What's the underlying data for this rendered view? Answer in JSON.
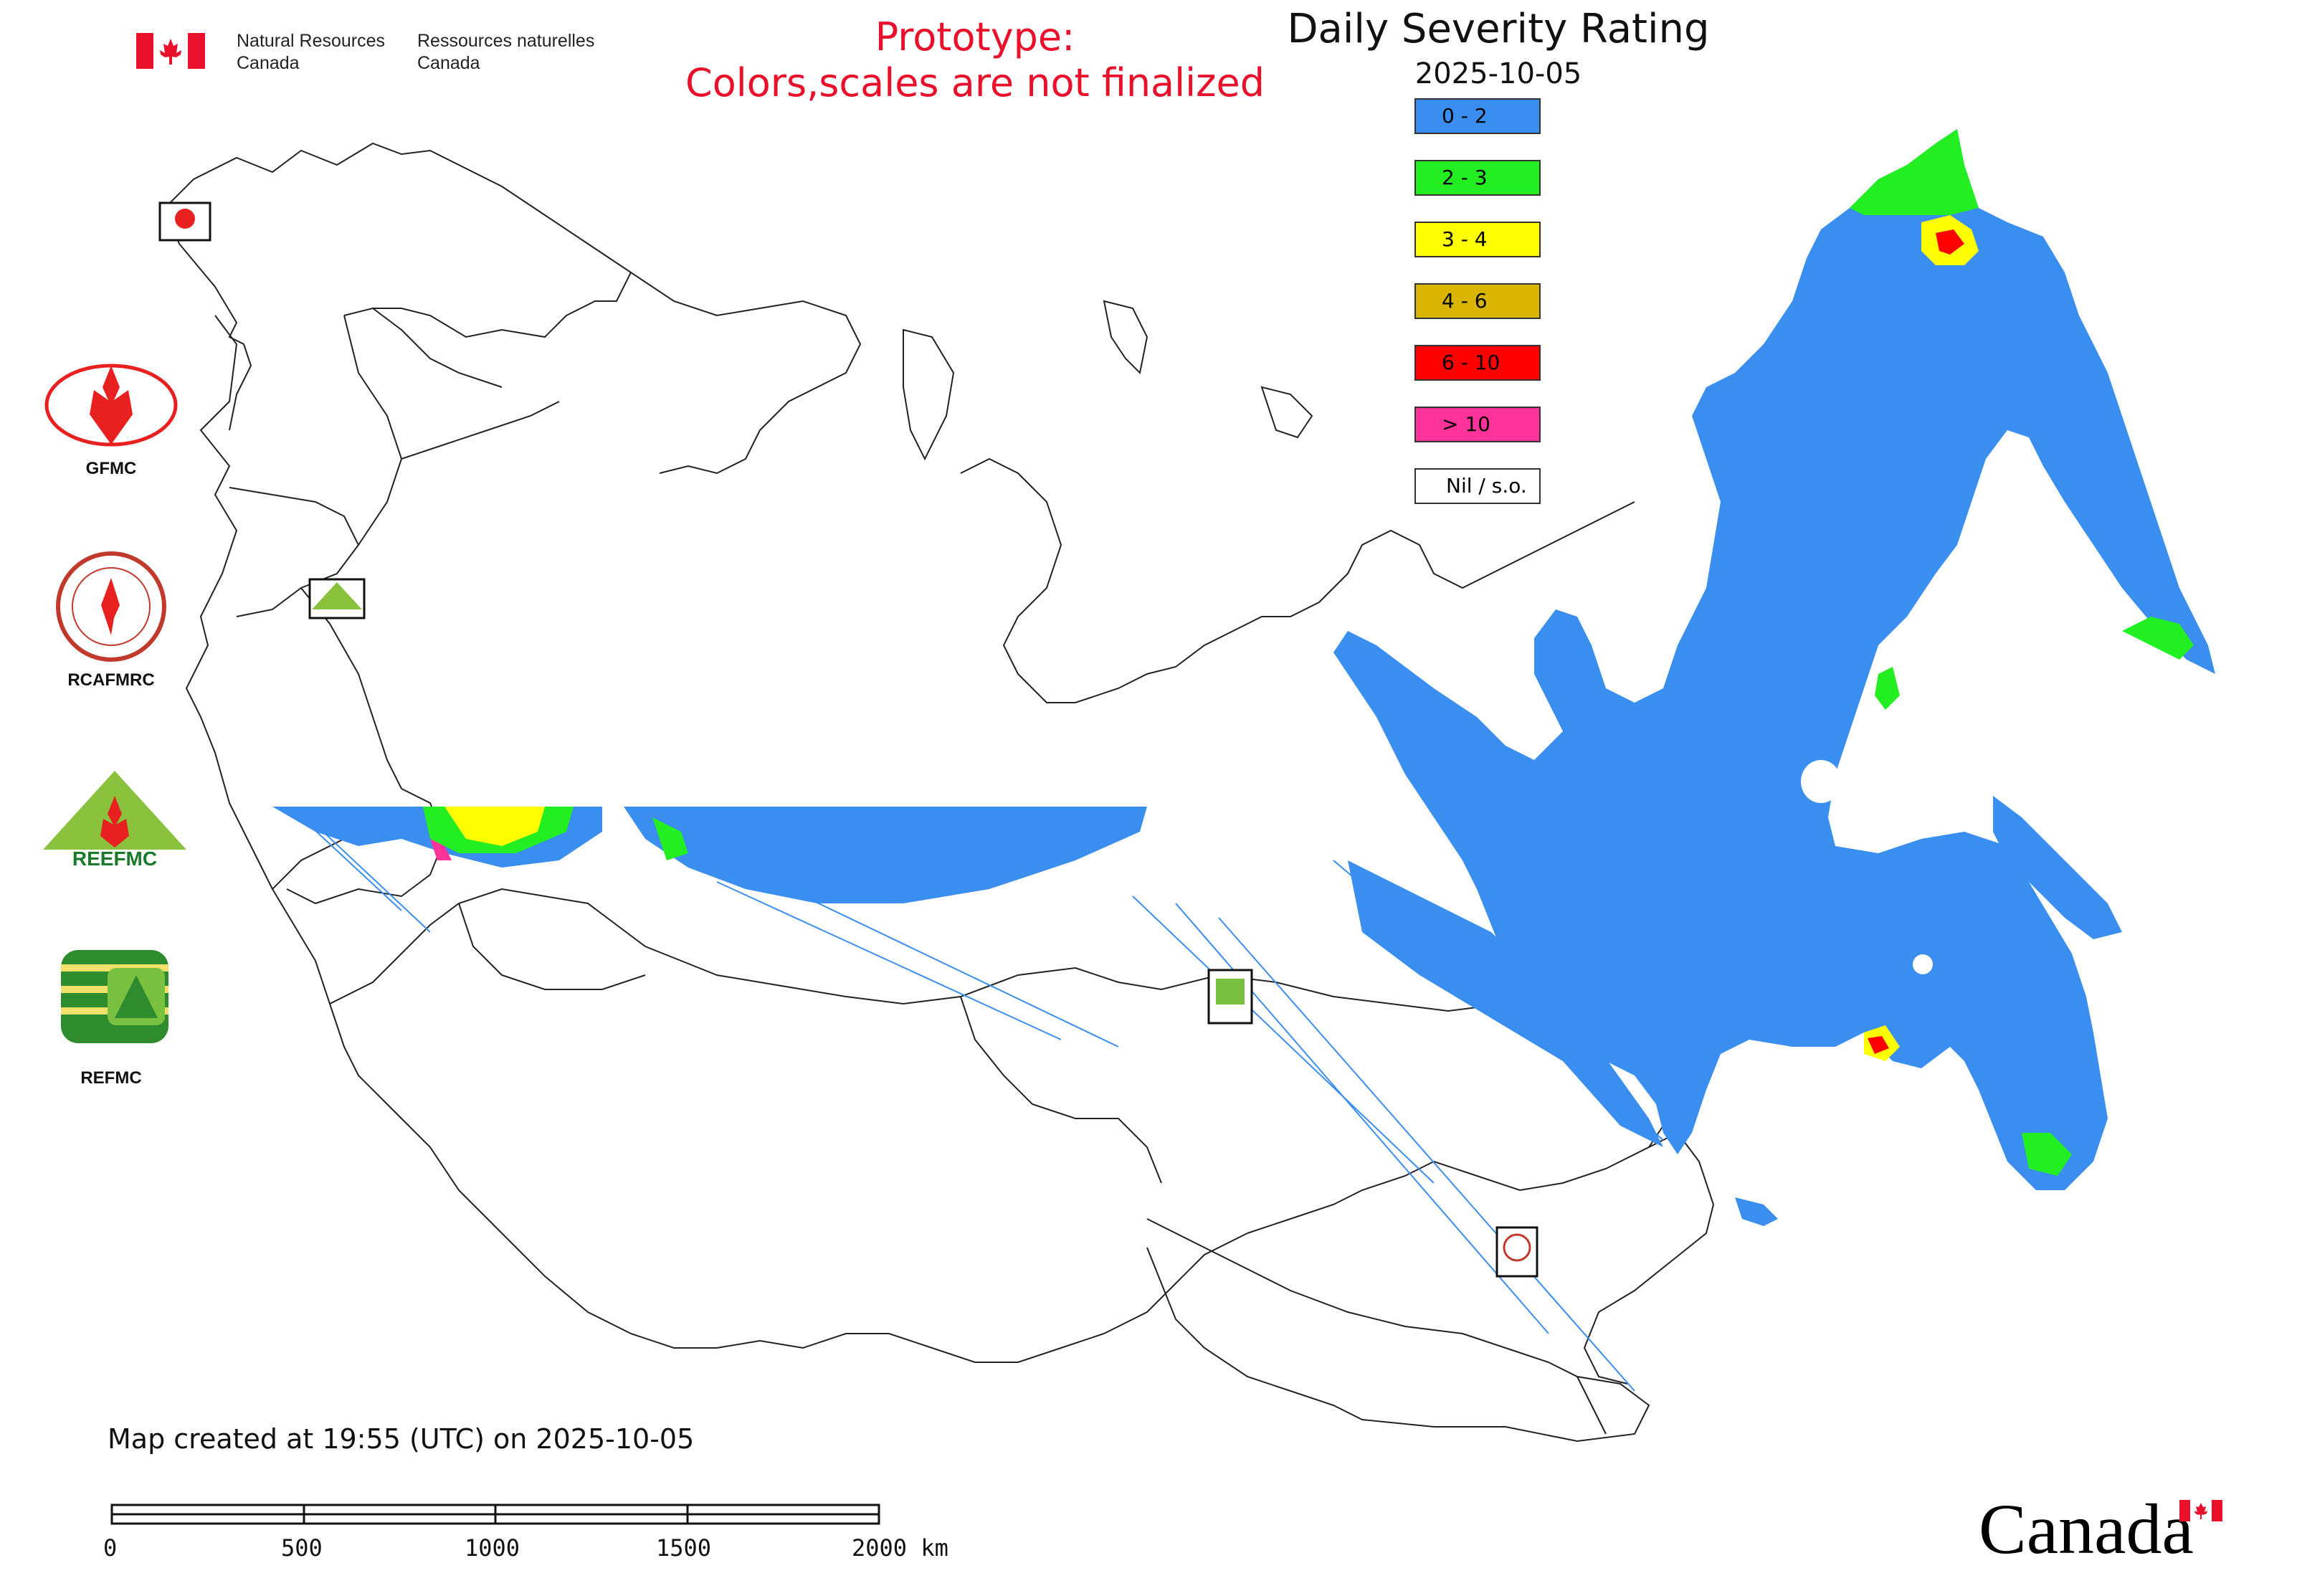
{
  "header": {
    "nrcan_en_line1": "Natural Resources",
    "nrcan_en_line2": "Canada",
    "nrcan_fr_line1": "Ressources naturelles",
    "nrcan_fr_line2": "Canada",
    "prototype_line1": "Prototype:",
    "prototype_line2": "Colors,scales are not finalized"
  },
  "map": {
    "title": "Daily Severity Rating",
    "date": "2025-10-05",
    "legend": [
      {
        "label": "0 - 2",
        "color": "#3a8ef0"
      },
      {
        "label": "2 - 3",
        "color": "#22ee22"
      },
      {
        "label": "3 - 4",
        "color": "#ffff00"
      },
      {
        "label": "4 - 6",
        "color": "#d9b400"
      },
      {
        "label": "6 - 10",
        "color": "#ff0000"
      },
      {
        "label": "> 10",
        "color": "#ff3399"
      },
      {
        "label": "Nil / s.o.",
        "color": "#ffffff"
      }
    ]
  },
  "logos": {
    "gfmc": "GFMC",
    "rcafmrc": "RCAFMRC",
    "reefmc": "REEFMC",
    "refmc": "REFMC"
  },
  "footer": {
    "created": "Map created at 19:55 (UTC) on 2025-10-05",
    "scale_labels": [
      "0",
      "500",
      "1000",
      "1500",
      "2000 km"
    ],
    "wordmark": "Canada"
  }
}
